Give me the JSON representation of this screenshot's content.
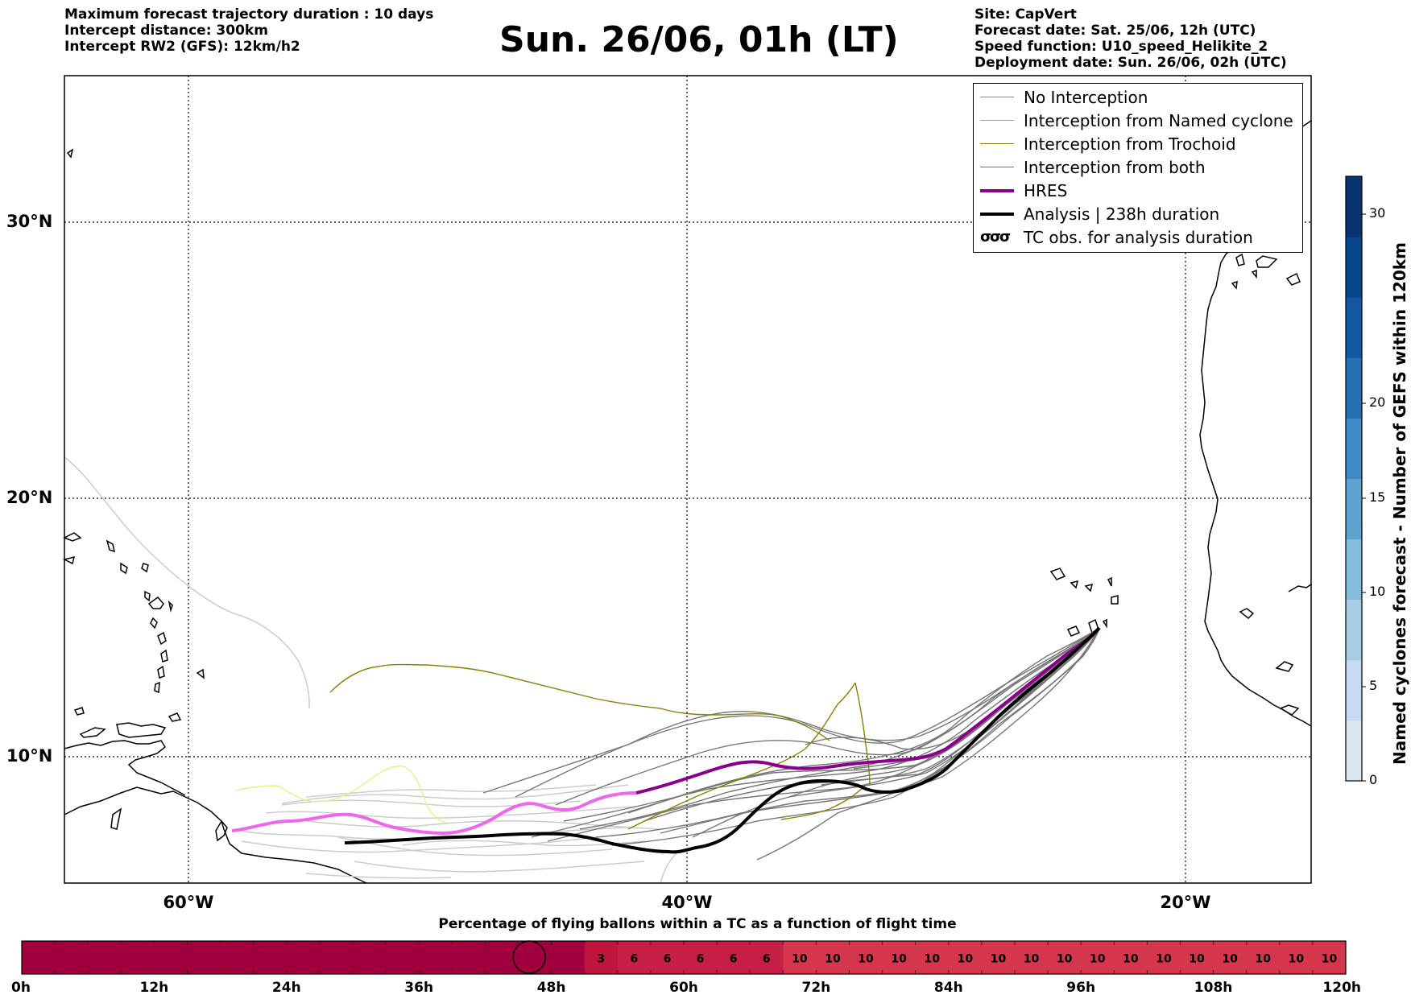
{
  "header": {
    "left_lines": [
      "Maximum forecast trajectory duration : 10 days",
      "Intercept distance: 300km",
      "Intercept RW2 (GFS):  12km/h2"
    ],
    "title": "Sun. 26/06, 01h (LT)",
    "right_lines": [
      "Site: CapVert",
      "Forecast date: Sat. 25/06, 12h (UTC)",
      "Speed function: U10_speed_Helikite_2",
      "Deployment date: Sun. 26/06, 02h (UTC)"
    ]
  },
  "map": {
    "lat_labels": [
      "30°N",
      "20°N",
      "10°N"
    ],
    "lon_labels": [
      "60°W",
      "40°W",
      "20°W"
    ],
    "colors": {
      "no_interception": "#888888",
      "named_cyclone": "#ff7f50",
      "trochoid": "#8b8000",
      "both": "#2ca02c",
      "hres": "#8b008b",
      "hres_early": "#ee66ee",
      "analysis": "#000000",
      "trochoid_light": "#eeee88",
      "no_interception_light": "#cccccc"
    }
  },
  "legend": {
    "items": [
      {
        "label": "No Interception",
        "color": "#888888",
        "style": "thin"
      },
      {
        "label": "Interception from Named cyclone",
        "color": "#ff7f50",
        "style": "thin"
      },
      {
        "label": "Interception from Trochoid",
        "color": "#8b8000",
        "style": "thin"
      },
      {
        "label": "Interception from both",
        "color": "#2ca02c",
        "style": "thin"
      },
      {
        "label": "HRES",
        "color": "#8b008b",
        "style": "thick"
      },
      {
        "label": "Analysis | 238h duration",
        "color": "#000000",
        "style": "thick"
      },
      {
        "label": "TC obs. for analysis duration",
        "color": "#000000",
        "style": "symbol"
      }
    ]
  },
  "colorbar": {
    "label": "Named cyclones forecast - Number of GEFS within 120km",
    "ticks": [
      "0",
      "5",
      "10",
      "15",
      "20",
      "30"
    ],
    "colors": [
      "#dbe6f3",
      "#c6dbef",
      "#a8cde4",
      "#85bcdb",
      "#5fa4d0",
      "#3f8cc5",
      "#2671b4",
      "#1259a2",
      "#08468c",
      "#083570"
    ]
  },
  "progress": {
    "title": "Percentage of flying ballons within a TC as a function of flight time",
    "time_labels": [
      "0h",
      "12h",
      "24h",
      "36h",
      "48h",
      "60h",
      "72h",
      "84h",
      "96h",
      "108h",
      "120h"
    ],
    "segments": [
      {
        "hours": 51,
        "label": "",
        "color": "#a0003d"
      },
      {
        "hours": 3,
        "label": "3",
        "color": "#c0153f"
      },
      {
        "hours": 3,
        "label": "6",
        "color": "#c71e45"
      },
      {
        "hours": 3,
        "label": "6",
        "color": "#c71e45"
      },
      {
        "hours": 3,
        "label": "6",
        "color": "#c71e45"
      },
      {
        "hours": 3,
        "label": "6",
        "color": "#c71e45"
      },
      {
        "hours": 3,
        "label": "6",
        "color": "#c71e45"
      },
      {
        "hours": 3,
        "label": "10",
        "color": "#d5364b"
      },
      {
        "hours": 3,
        "label": "10",
        "color": "#d5364b"
      },
      {
        "hours": 3,
        "label": "10",
        "color": "#d5364b"
      },
      {
        "hours": 3,
        "label": "10",
        "color": "#d5364b"
      },
      {
        "hours": 3,
        "label": "10",
        "color": "#d5364b"
      },
      {
        "hours": 3,
        "label": "10",
        "color": "#d5364b"
      },
      {
        "hours": 3,
        "label": "10",
        "color": "#d5364b"
      },
      {
        "hours": 3,
        "label": "10",
        "color": "#d5364b"
      },
      {
        "hours": 3,
        "label": "10",
        "color": "#d5364b"
      },
      {
        "hours": 3,
        "label": "10",
        "color": "#d5364b"
      },
      {
        "hours": 3,
        "label": "10",
        "color": "#d5364b"
      },
      {
        "hours": 3,
        "label": "10",
        "color": "#d5364b"
      },
      {
        "hours": 3,
        "label": "10",
        "color": "#d5364b"
      },
      {
        "hours": 3,
        "label": "10",
        "color": "#d5364b"
      },
      {
        "hours": 3,
        "label": "10",
        "color": "#d5364b"
      },
      {
        "hours": 3,
        "label": "10",
        "color": "#d5364b"
      },
      {
        "hours": 3,
        "label": "10",
        "color": "#d5364b"
      }
    ],
    "current_hour": 46
  }
}
